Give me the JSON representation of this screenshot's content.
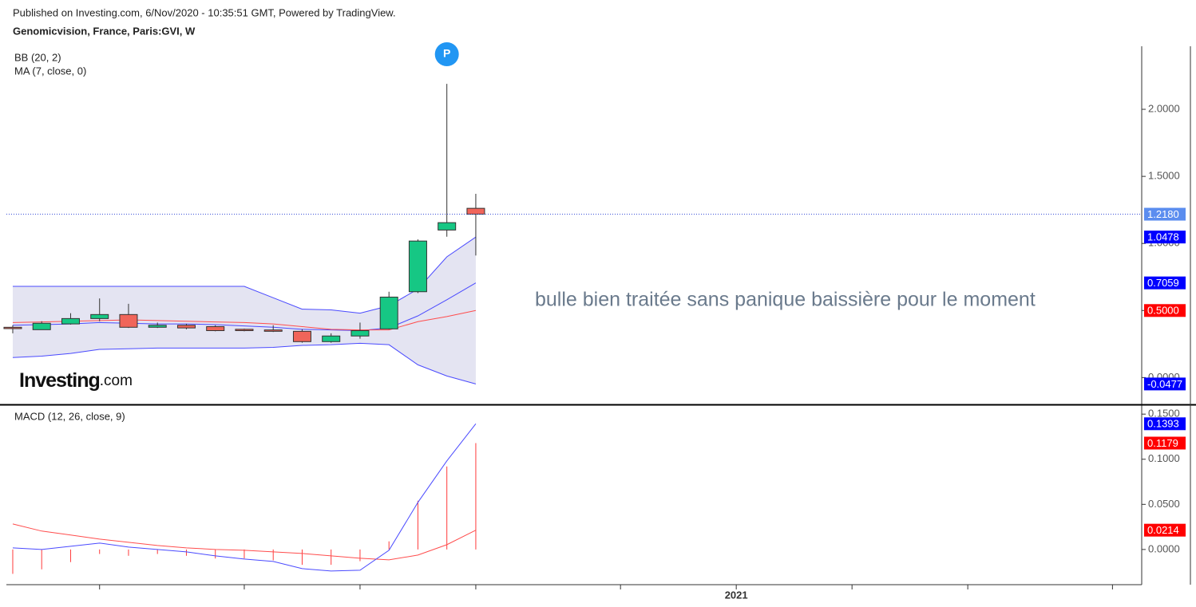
{
  "header": {
    "published": "Published on Investing.com, 6/Nov/2020 - 10:35:51 GMT, Powered by TradingView.",
    "title": "Genomicvision, France, Paris:GVI, W"
  },
  "logo": {
    "brand": "Investing",
    "suffix": ".com"
  },
  "chart_data": [
    {
      "type": "candlestick",
      "categories": [
        null,
        null,
        null,
        null,
        null,
        null,
        null,
        null,
        null,
        null,
        null,
        null,
        null,
        null,
        null,
        null,
        null
      ],
      "open": [
        0.375,
        0.357,
        0.4,
        0.44,
        0.47,
        0.375,
        0.39,
        0.38,
        0.36,
        0.355,
        0.345,
        0.268,
        0.31,
        0.363,
        0.64,
        1.1,
        1.262
      ],
      "high": [
        0.39,
        0.42,
        0.48,
        0.59,
        0.55,
        0.41,
        0.4,
        0.39,
        0.365,
        0.39,
        0.36,
        0.33,
        0.41,
        0.64,
        1.03,
        2.19,
        1.37
      ],
      "low": [
        0.33,
        0.357,
        0.395,
        0.42,
        0.37,
        0.37,
        0.36,
        0.345,
        0.345,
        0.34,
        0.26,
        0.26,
        0.29,
        0.36,
        0.63,
        1.05,
        0.91
      ],
      "close": [
        0.365,
        0.405,
        0.44,
        0.47,
        0.375,
        0.39,
        0.37,
        0.35,
        0.35,
        0.345,
        0.268,
        0.31,
        0.35,
        0.6,
        1.018,
        1.155,
        1.218
      ],
      "up_color": "#16c784",
      "down_color": "#f0655a",
      "indicators": [
        {
          "name": "BB (20, 2)",
          "color": "#4a4aff",
          "fill": "#e4e4f2",
          "upper": [
            0.68,
            0.68,
            0.68,
            0.68,
            0.68,
            0.68,
            0.68,
            0.68,
            0.68,
            0.595,
            0.51,
            0.505,
            0.48,
            0.535,
            0.66,
            0.9,
            1.0478
          ],
          "basis": [
            0.39,
            0.395,
            0.4,
            0.41,
            0.405,
            0.4,
            0.4,
            0.395,
            0.385,
            0.375,
            0.36,
            0.355,
            0.35,
            0.37,
            0.46,
            0.58,
            0.7059
          ],
          "lower": [
            0.149,
            0.16,
            0.18,
            0.21,
            0.215,
            0.22,
            0.22,
            0.22,
            0.22,
            0.225,
            0.24,
            0.245,
            0.256,
            0.245,
            0.095,
            0.012,
            -0.0477
          ]
        },
        {
          "name": "MA (7, close, 0)",
          "color": "#ff4d4d",
          "values": [
            0.41,
            0.415,
            0.42,
            0.425,
            0.43,
            0.425,
            0.42,
            0.415,
            0.41,
            0.4,
            0.38,
            0.36,
            0.355,
            0.355,
            0.417,
            0.455,
            0.5
          ]
        }
      ],
      "ylim": [
        -0.2,
        2.47
      ],
      "yticks": [
        {
          "value": 0,
          "label": "0.0000"
        },
        {
          "value": 0.5,
          "label": "0.5000"
        },
        {
          "value": 1,
          "label": "1.0000"
        },
        {
          "value": 1.5,
          "label": "1.5000"
        },
        {
          "value": 2,
          "label": "2.0000"
        }
      ],
      "xlim": [
        -0.22,
        39.01
      ],
      "xticks": [
        3,
        8,
        12,
        16,
        21,
        25,
        29,
        33,
        38
      ],
      "xtick_labels": [
        {
          "value": 25,
          "label": "2021"
        }
      ],
      "last_values": [
        {
          "value": 1.218,
          "label": "1.2180",
          "color": "#5b8def"
        },
        {
          "value": 1.0478,
          "label": "1.0478",
          "color": "#0000ff"
        },
        {
          "value": 0.7059,
          "label": "0.7059",
          "color": "#0000ff"
        },
        {
          "value": 0.5,
          "label": "0.5000",
          "color": "#ff0000"
        },
        {
          "value": -0.0477,
          "label": "-0.0477",
          "color": "#0000ff"
        }
      ],
      "price_line_color": "#3a4fd8",
      "marker": {
        "label": "P",
        "index": 15,
        "color": "#2196f3"
      },
      "annotation": "bulle bien traitée sans panique baissière pour le moment"
    },
    {
      "type": "macd",
      "title": "MACD (12, 26, close, 9)",
      "macd": [
        0.0018,
        0,
        0.0035,
        0.0071,
        0.0027,
        0,
        -0.0027,
        -0.0071,
        -0.0106,
        -0.0133,
        -0.0212,
        -0.0239,
        -0.023,
        -0.0009,
        0.0522,
        0.0982,
        0.1393
      ],
      "signal": [
        0.0283,
        0.0204,
        0.016,
        0.0115,
        0.008,
        0.0044,
        0.0018,
        0,
        -0.0009,
        -0.0027,
        -0.0044,
        -0.0071,
        -0.0097,
        -0.0115,
        -0.0062,
        0.0053,
        0.0214
      ],
      "histogram": [
        -0.027,
        -0.022,
        -0.014,
        -0.005,
        -0.007,
        -0.005,
        -0.007,
        -0.01,
        -0.01,
        -0.012,
        -0.017,
        -0.017,
        -0.013,
        0.009,
        0.054,
        0.092,
        0.1179
      ],
      "macd_color": "#4a4aff",
      "signal_color": "#ff4d4d",
      "histogram_color": "#ff3b3b",
      "ylim": [
        -0.039,
        0.159
      ],
      "yticks": [
        {
          "value": 0,
          "label": "0.0000"
        },
        {
          "value": 0.05,
          "label": "0.0500"
        },
        {
          "value": 0.1,
          "label": "0.1000"
        },
        {
          "value": 0.15,
          "label": "0.1500"
        }
      ],
      "last_values": [
        {
          "value": 0.1393,
          "label": "0.1393",
          "color": "#0000ff"
        },
        {
          "value": 0.1179,
          "label": "0.1179",
          "color": "#ff0000"
        },
        {
          "value": 0.0214,
          "label": "0.0214",
          "color": "#ff0000"
        }
      ]
    }
  ]
}
